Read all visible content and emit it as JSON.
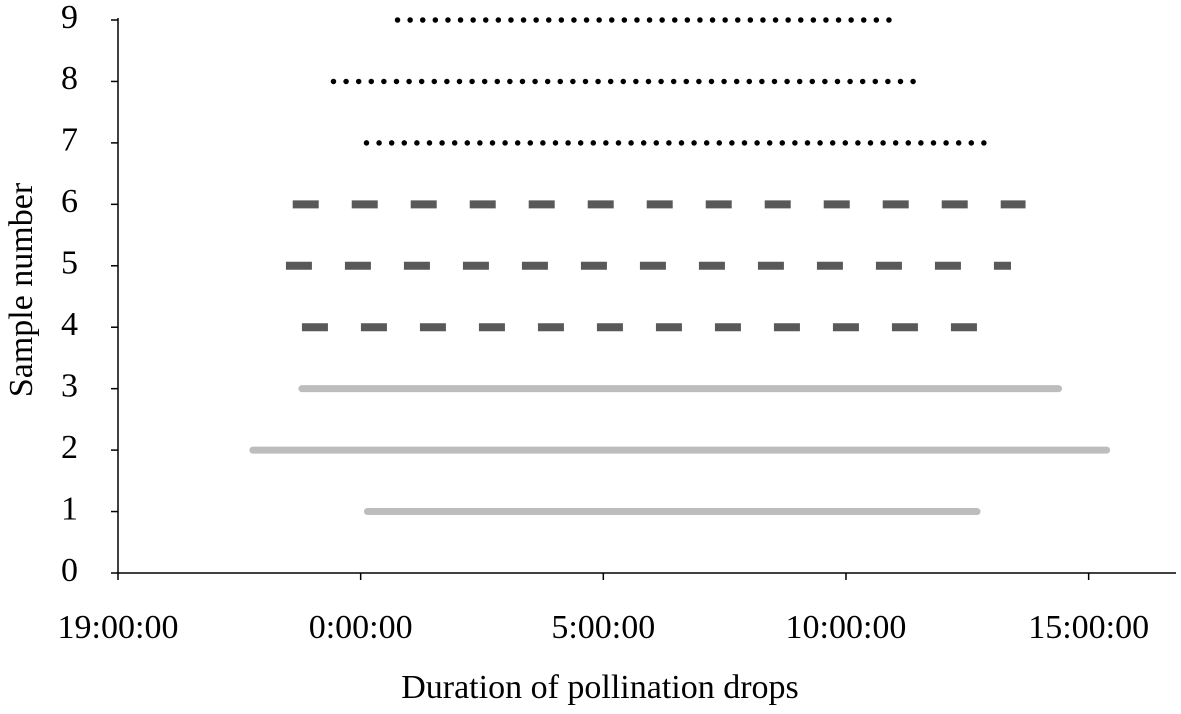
{
  "chart_data": {
    "type": "range",
    "x_label": "Duration of pollination drops",
    "y_label": "Sample number",
    "xlim": [
      -5,
      16.8
    ],
    "xticks": [
      {
        "value": -5,
        "label": "19:00:00"
      },
      {
        "value": 0,
        "label": "0:00:00"
      },
      {
        "value": 5,
        "label": "5:00:00"
      },
      {
        "value": 10,
        "label": "10:00:00"
      },
      {
        "value": 15,
        "label": "15:00:00"
      }
    ],
    "ylim": [
      0,
      9
    ],
    "yticks": [
      0,
      1,
      2,
      3,
      4,
      5,
      6,
      7,
      8,
      9
    ],
    "series": [
      {
        "color": "#bdbdbd",
        "style": "solid",
        "y": [
          1,
          2,
          3
        ],
        "start": [
          0.14,
          -2.22,
          -1.21
        ],
        "end": [
          12.7,
          15.37,
          14.38
        ]
      },
      {
        "color": "#595959",
        "style": "dashed",
        "y": [
          4,
          5,
          6
        ],
        "start": [
          -1.21,
          -1.54,
          -1.4
        ],
        "end": [
          12.86,
          13.4,
          13.7
        ]
      },
      {
        "color": "#000000",
        "style": "dotted",
        "y": [
          7,
          8,
          9
        ],
        "start": [
          0.12,
          -0.56,
          0.76
        ],
        "end": [
          13.1,
          11.4,
          10.99
        ]
      }
    ]
  }
}
